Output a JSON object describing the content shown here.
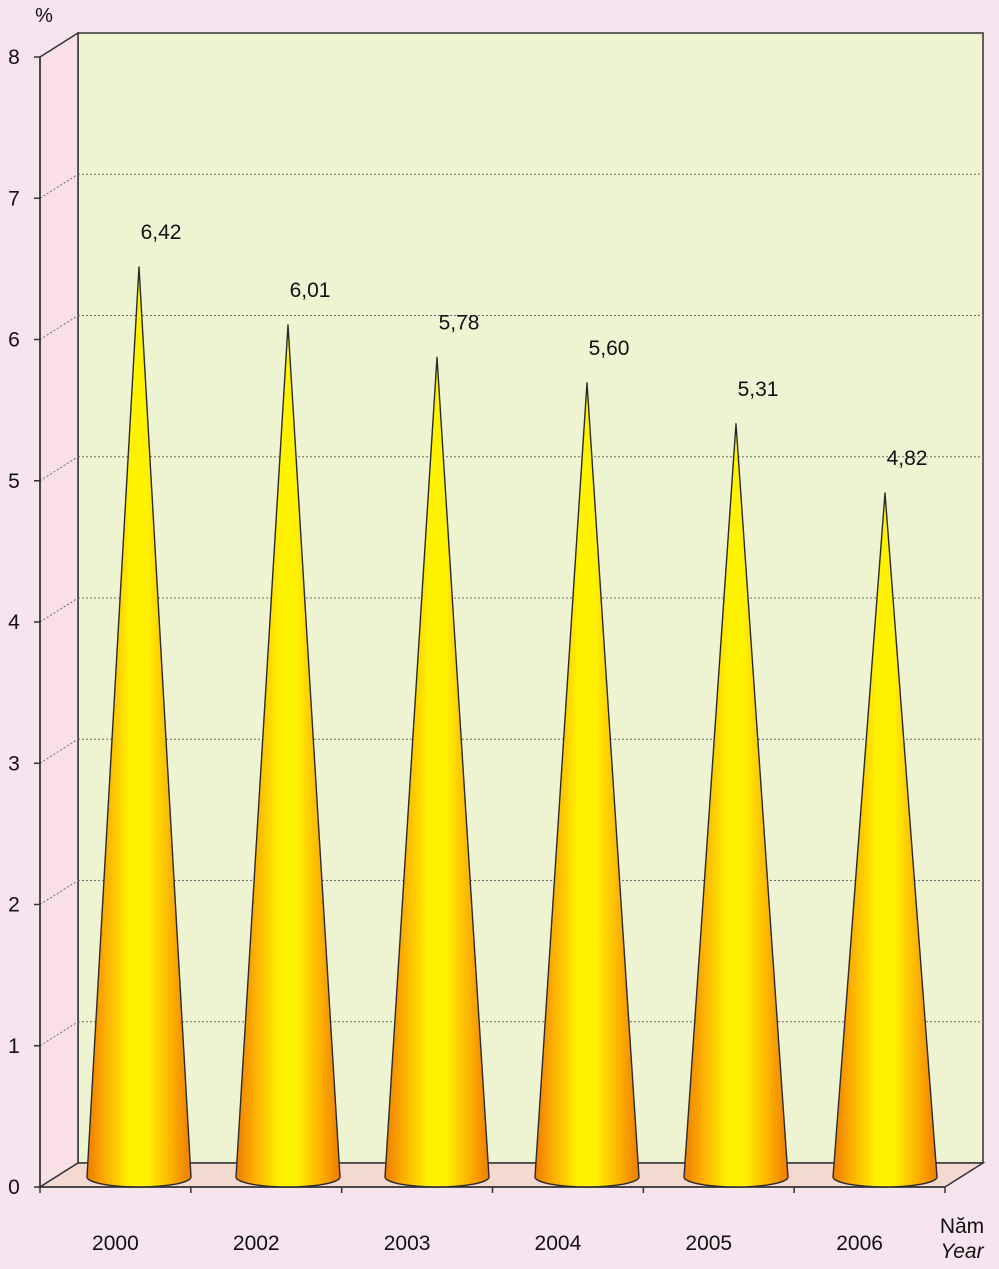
{
  "chart_data": {
    "type": "bar",
    "title": "",
    "ylabel": "%",
    "xlabel": [
      "Năm",
      "Year"
    ],
    "categories": [
      "2000",
      "2002",
      "2003",
      "2004",
      "2005",
      "2006"
    ],
    "values": [
      6.42,
      6.01,
      5.78,
      5.6,
      5.31,
      4.82
    ],
    "value_labels": [
      "6,42",
      "6,01",
      "5,78",
      "5,60",
      "5,31",
      "4,82"
    ],
    "yticks": [
      "0",
      "1",
      "2",
      "3",
      "4",
      "5",
      "6",
      "7",
      "8"
    ],
    "ylim": [
      0,
      8
    ],
    "grid": true,
    "bar_shape": "cone",
    "colors": {
      "page_background": "#f6e4ef",
      "plot_background": "#eef4d2",
      "side_wall": "#f9dfe6",
      "floor": "#f3d9cf",
      "cone_light": "#fff200",
      "cone_dark": "#f07c00",
      "gridline": "#6f6f6f"
    }
  }
}
